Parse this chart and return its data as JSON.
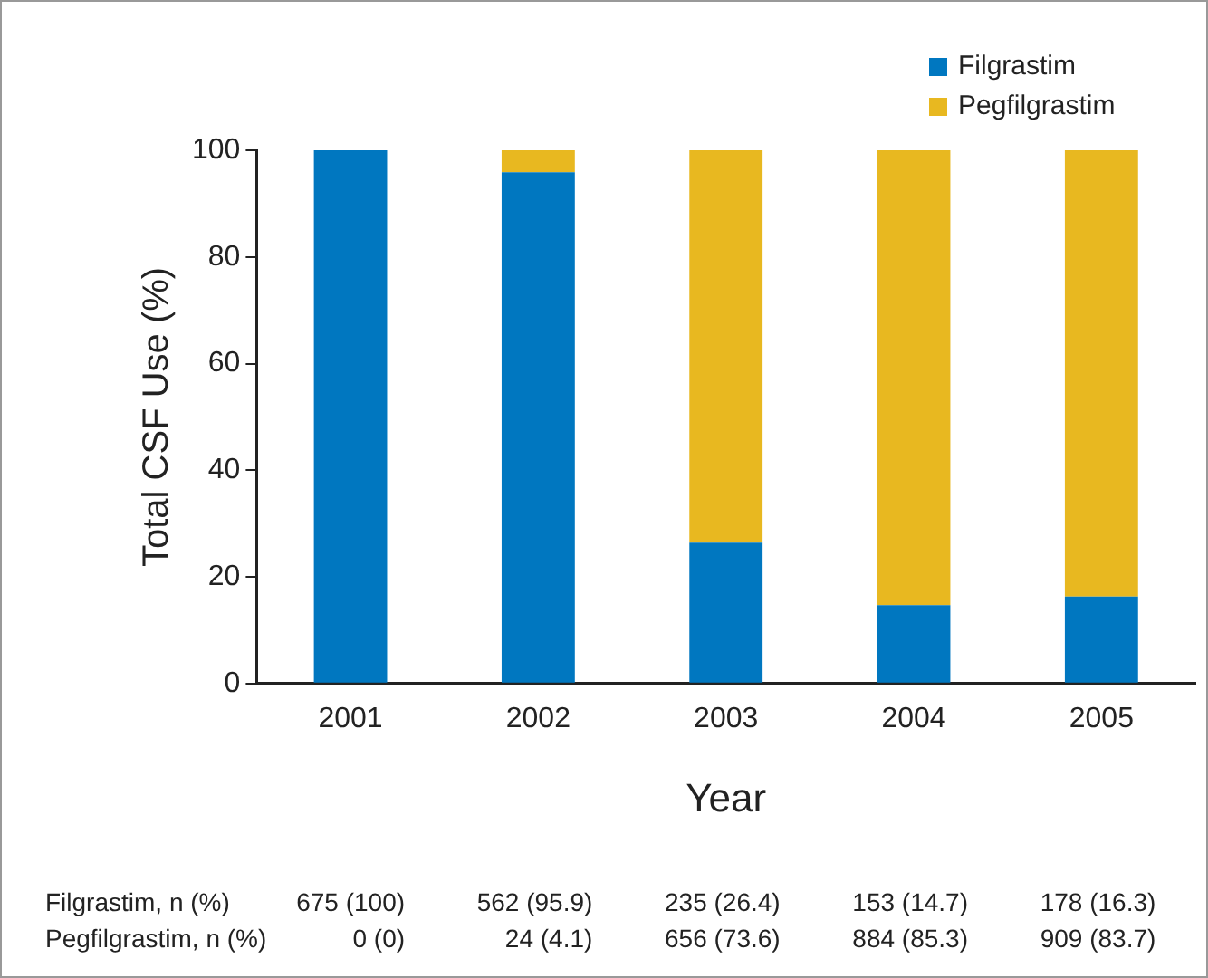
{
  "chart_data": {
    "type": "bar",
    "xlabel": "Year",
    "ylabel": "Total CSF Use (%)",
    "categories": [
      "2001",
      "2002",
      "2003",
      "2004",
      "2005"
    ],
    "stacked": true,
    "series": [
      {
        "name": "Filgrastim",
        "color": "#0077c0",
        "values": [
          100,
          95.9,
          26.4,
          14.7,
          16.3
        ],
        "value_labels": [
          "675 (100)",
          "562 (95.9)",
          "235 (26.4)",
          "153 (14.7)",
          "178 (16.3)"
        ]
      },
      {
        "name": "Pegfilgrastim",
        "color": "#e8b820",
        "values": [
          0,
          4.1,
          73.6,
          85.3,
          83.7
        ],
        "value_labels": [
          "0 (0)",
          "24 (4.1)",
          "656 (73.6)",
          "884 (85.3)",
          "909 (83.7)"
        ]
      }
    ],
    "ylim": [
      0,
      100
    ],
    "yticks": [
      0,
      20,
      40,
      60,
      80,
      100
    ],
    "grid": false,
    "legend": "top right",
    "annotations": [
      "Filgrastim, n (%)",
      "Pegfilgrastim, n (%)"
    ]
  }
}
